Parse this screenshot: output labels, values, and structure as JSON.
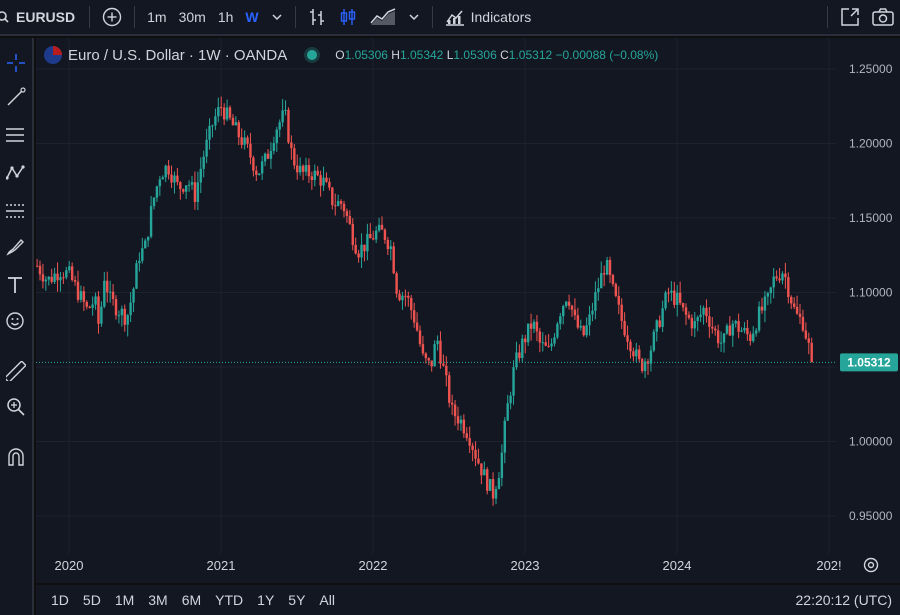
{
  "header": {
    "symbol": "EURUSD",
    "intervals": [
      "1m",
      "30m",
      "1h",
      "W"
    ],
    "active_interval": "W",
    "indicators_label": "Indicators"
  },
  "legend": {
    "title": "Euro / U.S. Dollar · 1W · OANDA",
    "o_label": "O",
    "o": "1.05306",
    "h_label": "H",
    "h": "1.05342",
    "l_label": "L",
    "l": "1.05306",
    "c_label": "C",
    "c": "1.05312",
    "change": "−0.00088 (−0.08%)"
  },
  "price_label": "1.05312",
  "colors": {
    "up": "#26a69a",
    "down": "#ef5350",
    "accent": "#2962ff",
    "background": "#131722",
    "grid": "#1e222d"
  },
  "ranges": [
    "1D",
    "5D",
    "1M",
    "3M",
    "6M",
    "YTD",
    "1Y",
    "5Y",
    "All"
  ],
  "clock": "22:20:12 (UTC)",
  "tools": [
    "crosshair-icon",
    "trend-line-icon",
    "horizontal-lines-icon",
    "pattern-icon",
    "fib-icon",
    "brush-icon",
    "text-icon",
    "emoji-icon",
    "ruler-icon",
    "zoom-icon",
    "magnet-icon"
  ],
  "chart_data": {
    "type": "candlestick",
    "title": "Euro / U.S. Dollar · 1W · OANDA",
    "y_ticks": [
      "1.25000",
      "1.20000",
      "1.15000",
      "1.10000",
      "1.05000",
      "1.00000",
      "0.95000"
    ],
    "x_ticks": [
      "2020",
      "2021",
      "2022",
      "2023",
      "2024",
      "202!"
    ],
    "ylim": [
      0.935,
      1.27
    ],
    "xlim": [
      2019.78,
      2025.02
    ],
    "last_price": 1.05312,
    "path": [
      [
        2019.79,
        1.118
      ],
      [
        2019.86,
        1.108
      ],
      [
        2019.94,
        1.115
      ],
      [
        2020.0,
        1.112
      ],
      [
        2020.06,
        1.1
      ],
      [
        2020.12,
        1.088
      ],
      [
        2020.17,
        1.095
      ],
      [
        2020.2,
        1.075
      ],
      [
        2020.23,
        1.112
      ],
      [
        2020.27,
        1.095
      ],
      [
        2020.33,
        1.088
      ],
      [
        2020.38,
        1.083
      ],
      [
        2020.42,
        1.1
      ],
      [
        2020.46,
        1.125
      ],
      [
        2020.5,
        1.13
      ],
      [
        2020.55,
        1.16
      ],
      [
        2020.6,
        1.18
      ],
      [
        2020.65,
        1.185
      ],
      [
        2020.72,
        1.17
      ],
      [
        2020.78,
        1.175
      ],
      [
        2020.83,
        1.165
      ],
      [
        2020.88,
        1.19
      ],
      [
        2020.95,
        1.215
      ],
      [
        2021.0,
        1.225
      ],
      [
        2021.06,
        1.215
      ],
      [
        2021.12,
        1.205
      ],
      [
        2021.18,
        1.195
      ],
      [
        2021.24,
        1.18
      ],
      [
        2021.3,
        1.19
      ],
      [
        2021.36,
        1.21
      ],
      [
        2021.42,
        1.22
      ],
      [
        2021.47,
        1.19
      ],
      [
        2021.53,
        1.18
      ],
      [
        2021.6,
        1.18
      ],
      [
        2021.67,
        1.175
      ],
      [
        2021.74,
        1.16
      ],
      [
        2021.8,
        1.16
      ],
      [
        2021.86,
        1.14
      ],
      [
        2021.9,
        1.128
      ],
      [
        2021.96,
        1.133
      ],
      [
        2022.02,
        1.14
      ],
      [
        2022.07,
        1.14
      ],
      [
        2022.12,
        1.13
      ],
      [
        2022.16,
        1.1
      ],
      [
        2022.22,
        1.098
      ],
      [
        2022.28,
        1.08
      ],
      [
        2022.33,
        1.055
      ],
      [
        2022.38,
        1.05
      ],
      [
        2022.42,
        1.07
      ],
      [
        2022.47,
        1.045
      ],
      [
        2022.52,
        1.02
      ],
      [
        2022.57,
        1.015
      ],
      [
        2022.63,
        1.005
      ],
      [
        2022.68,
        0.99
      ],
      [
        2022.74,
        0.975
      ],
      [
        2022.79,
        0.965
      ],
      [
        2022.84,
        0.985
      ],
      [
        2022.88,
        1.02
      ],
      [
        2022.93,
        1.05
      ],
      [
        2022.98,
        1.065
      ],
      [
        2023.05,
        1.08
      ],
      [
        2023.1,
        1.065
      ],
      [
        2023.16,
        1.06
      ],
      [
        2023.22,
        1.085
      ],
      [
        2023.28,
        1.1
      ],
      [
        2023.33,
        1.08
      ],
      [
        2023.38,
        1.07
      ],
      [
        2023.42,
        1.08
      ],
      [
        2023.47,
        1.1
      ],
      [
        2023.53,
        1.12
      ],
      [
        2023.58,
        1.1
      ],
      [
        2023.64,
        1.08
      ],
      [
        2023.7,
        1.065
      ],
      [
        2023.76,
        1.05
      ],
      [
        2023.82,
        1.06
      ],
      [
        2023.88,
        1.08
      ],
      [
        2023.94,
        1.1
      ],
      [
        2024.0,
        1.095
      ],
      [
        2024.05,
        1.085
      ],
      [
        2024.12,
        1.078
      ],
      [
        2024.18,
        1.09
      ],
      [
        2024.24,
        1.075
      ],
      [
        2024.3,
        1.065
      ],
      [
        2024.36,
        1.08
      ],
      [
        2024.42,
        1.075
      ],
      [
        2024.48,
        1.07
      ],
      [
        2024.54,
        1.085
      ],
      [
        2024.6,
        1.095
      ],
      [
        2024.64,
        1.11
      ],
      [
        2024.7,
        1.115
      ],
      [
        2024.74,
        1.1
      ],
      [
        2024.78,
        1.085
      ],
      [
        2024.83,
        1.08
      ],
      [
        2024.87,
        1.062
      ],
      [
        2024.89,
        1.053
      ]
    ]
  }
}
